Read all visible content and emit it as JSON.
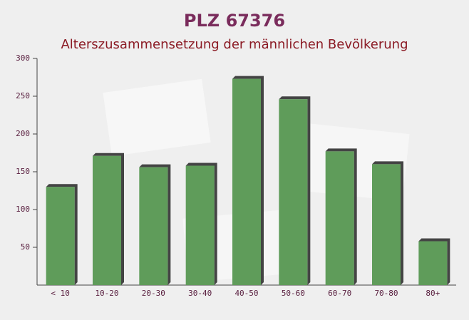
{
  "chart_data": {
    "type": "bar",
    "title": "PLZ 67376",
    "subtitle": "Alterszusammensetzung der männlichen Bevölkerung",
    "categories": [
      "< 10",
      "10-20",
      "20-30",
      "30-40",
      "40-50",
      "50-60",
      "60-70",
      "70-80",
      "80+"
    ],
    "values": [
      130,
      171,
      156,
      158,
      273,
      246,
      177,
      160,
      58
    ],
    "color": "#5f9c5a",
    "ylim": [
      0,
      300
    ],
    "yticks": [
      50,
      100,
      150,
      200,
      250,
      300
    ],
    "grid": false
  }
}
